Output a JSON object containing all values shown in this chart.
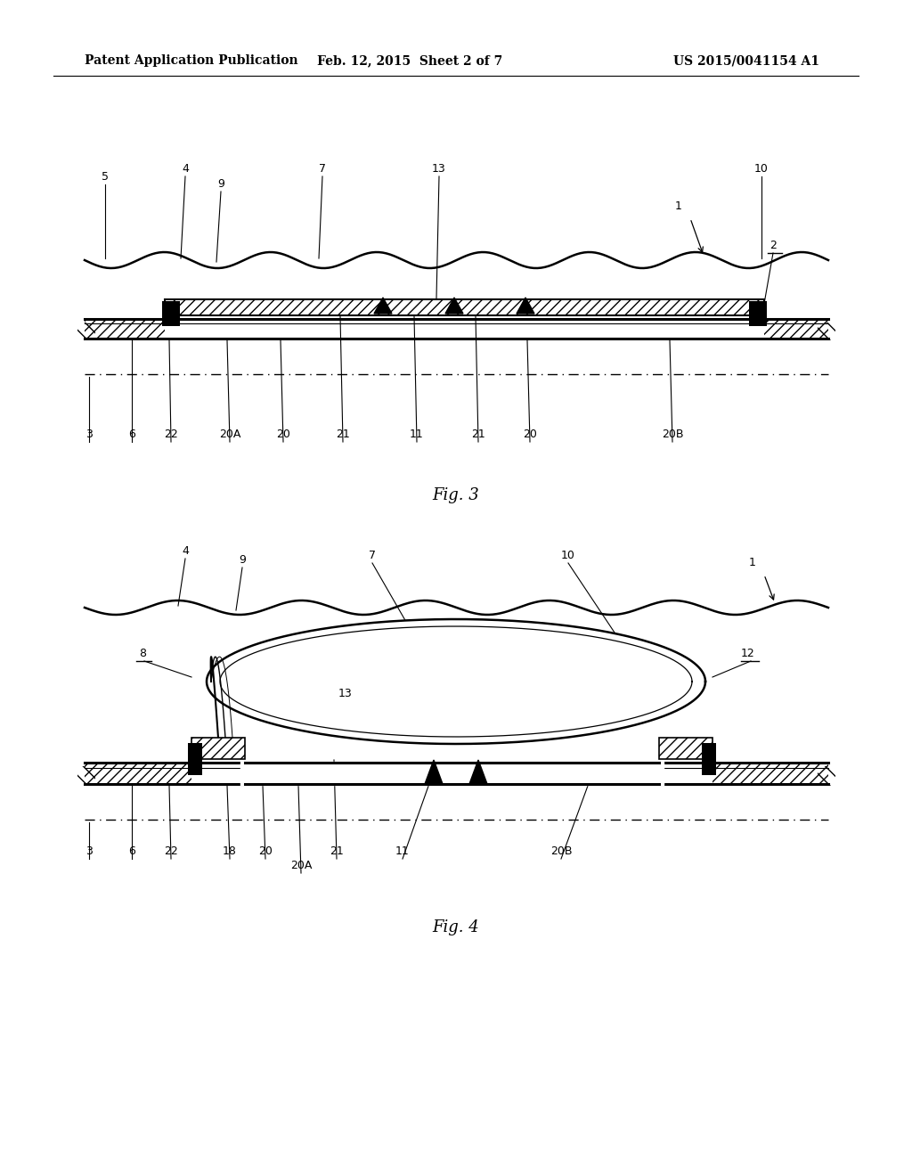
{
  "header_left": "Patent Application Publication",
  "header_mid": "Feb. 12, 2015  Sheet 2 of 7",
  "header_right": "US 2015/0041154 A1",
  "fig3_label": "Fig. 3",
  "fig4_label": "Fig. 4",
  "bg_color": "#ffffff",
  "line_color": "#000000"
}
